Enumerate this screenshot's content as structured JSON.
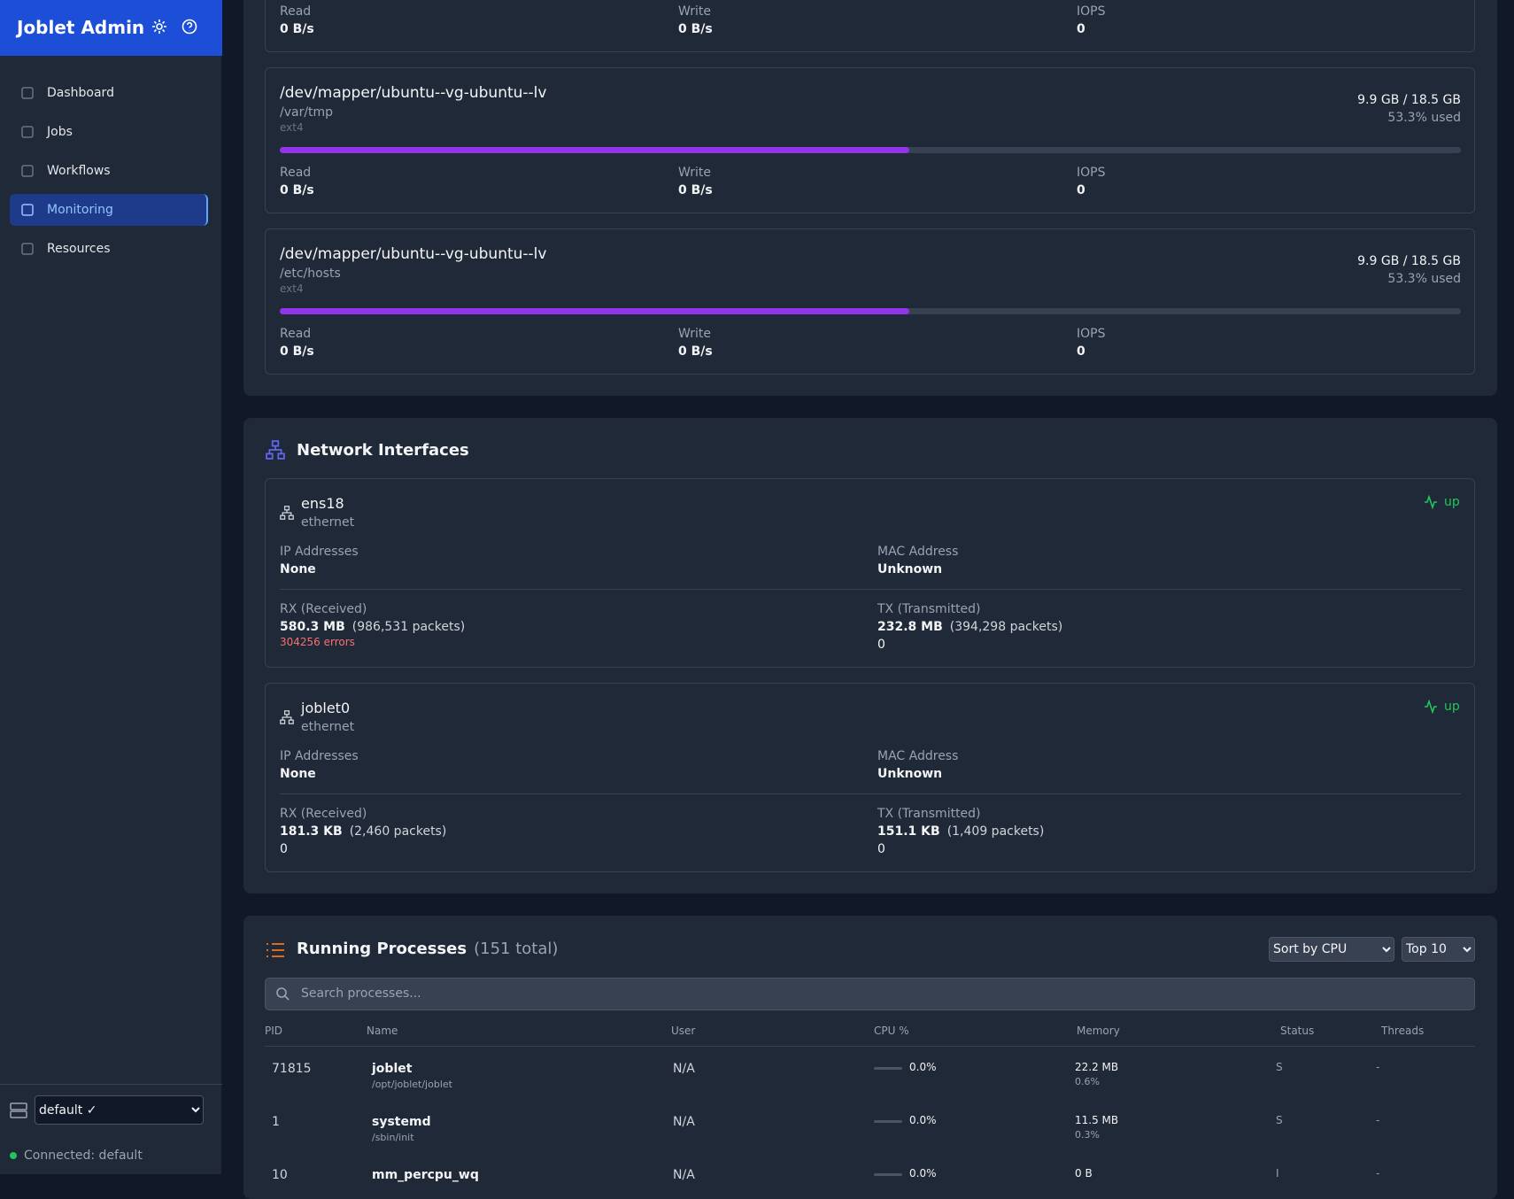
{
  "sidebar": {
    "title": "Joblet Admin",
    "nav": [
      "Dashboard",
      "Jobs",
      "Workflows",
      "Monitoring",
      "Resources"
    ],
    "server": "default ✓",
    "status": "Connected: default"
  },
  "disks": [
    {
      "stats": [
        {
          "label": "Read",
          "value": "0 B/s"
        },
        {
          "label": "Write",
          "value": "0 B/s"
        },
        {
          "label": "IOPS",
          "value": "0"
        }
      ]
    },
    {
      "device": "/dev/mapper/ubuntu--vg-ubuntu--lv",
      "mount": "/var/tmp",
      "fs": "ext4",
      "usage": "9.9 GB / 18.5 GB",
      "used": 53.3,
      "used_label": "53.3% used",
      "stats": [
        {
          "label": "Read",
          "value": "0 B/s"
        },
        {
          "label": "Write",
          "value": "0 B/s"
        },
        {
          "label": "IOPS",
          "value": "0"
        }
      ]
    },
    {
      "device": "/dev/mapper/ubuntu--vg-ubuntu--lv",
      "mount": "/etc/hosts",
      "fs": "ext4",
      "usage": "9.9 GB / 18.5 GB",
      "used": 53.3,
      "used_label": "53.3% used",
      "stats": [
        {
          "label": "Read",
          "value": "0 B/s"
        },
        {
          "label": "Write",
          "value": "0 B/s"
        },
        {
          "label": "IOPS",
          "value": "0"
        }
      ]
    }
  ],
  "network": {
    "title": "Network Interfaces",
    "interfaces": [
      {
        "name": "ens18",
        "type": "ethernet",
        "status": "up",
        "ip_label": "IP Addresses",
        "ip": "None",
        "mac_label": "MAC Address",
        "mac": "Unknown",
        "rx_label": "RX (Received)",
        "rx": "580.3 MB",
        "rx_packets": "(986,531 packets)",
        "rx_extra": "304256 errors",
        "tx_label": "TX (Transmitted)",
        "tx": "232.8 MB",
        "tx_packets": "(394,298 packets)",
        "tx_extra": "0"
      },
      {
        "name": "joblet0",
        "type": "ethernet",
        "status": "up",
        "ip_label": "IP Addresses",
        "ip": "None",
        "mac_label": "MAC Address",
        "mac": "Unknown",
        "rx_label": "RX (Received)",
        "rx": "181.3 KB",
        "rx_packets": "(2,460 packets)",
        "rx_extra": "0",
        "tx_label": "TX (Transmitted)",
        "tx": "151.1 KB",
        "tx_packets": "(1,409 packets)",
        "tx_extra": "0"
      }
    ]
  },
  "processes": {
    "title": "Running Processes",
    "count": "(151 total)",
    "sort": "Sort by CPU",
    "limit": "Top 10",
    "search": "Search processes...",
    "columns": [
      "PID",
      "Name",
      "User",
      "CPU %",
      "Memory",
      "Status",
      "Threads"
    ],
    "rows": [
      {
        "pid": "71815",
        "name": "joblet",
        "path": "/opt/joblet/joblet",
        "user": "N/A",
        "cpu": 0.0,
        "cpu_label": "0.0%",
        "mem": "22.2 MB",
        "mem_pct": "0.6%",
        "status": "S",
        "threads": "-"
      },
      {
        "pid": "1",
        "name": "systemd",
        "path": "/sbin/init",
        "user": "N/A",
        "cpu": 0.0,
        "cpu_label": "0.0%",
        "mem": "11.5 MB",
        "mem_pct": "0.3%",
        "status": "S",
        "threads": "-"
      },
      {
        "pid": "10",
        "name": "mm_percpu_wq",
        "user": "N/A",
        "cpu": 0.0,
        "cpu_label": "0.0%",
        "mem": "0 B",
        "status": "I",
        "threads": "-"
      }
    ]
  }
}
